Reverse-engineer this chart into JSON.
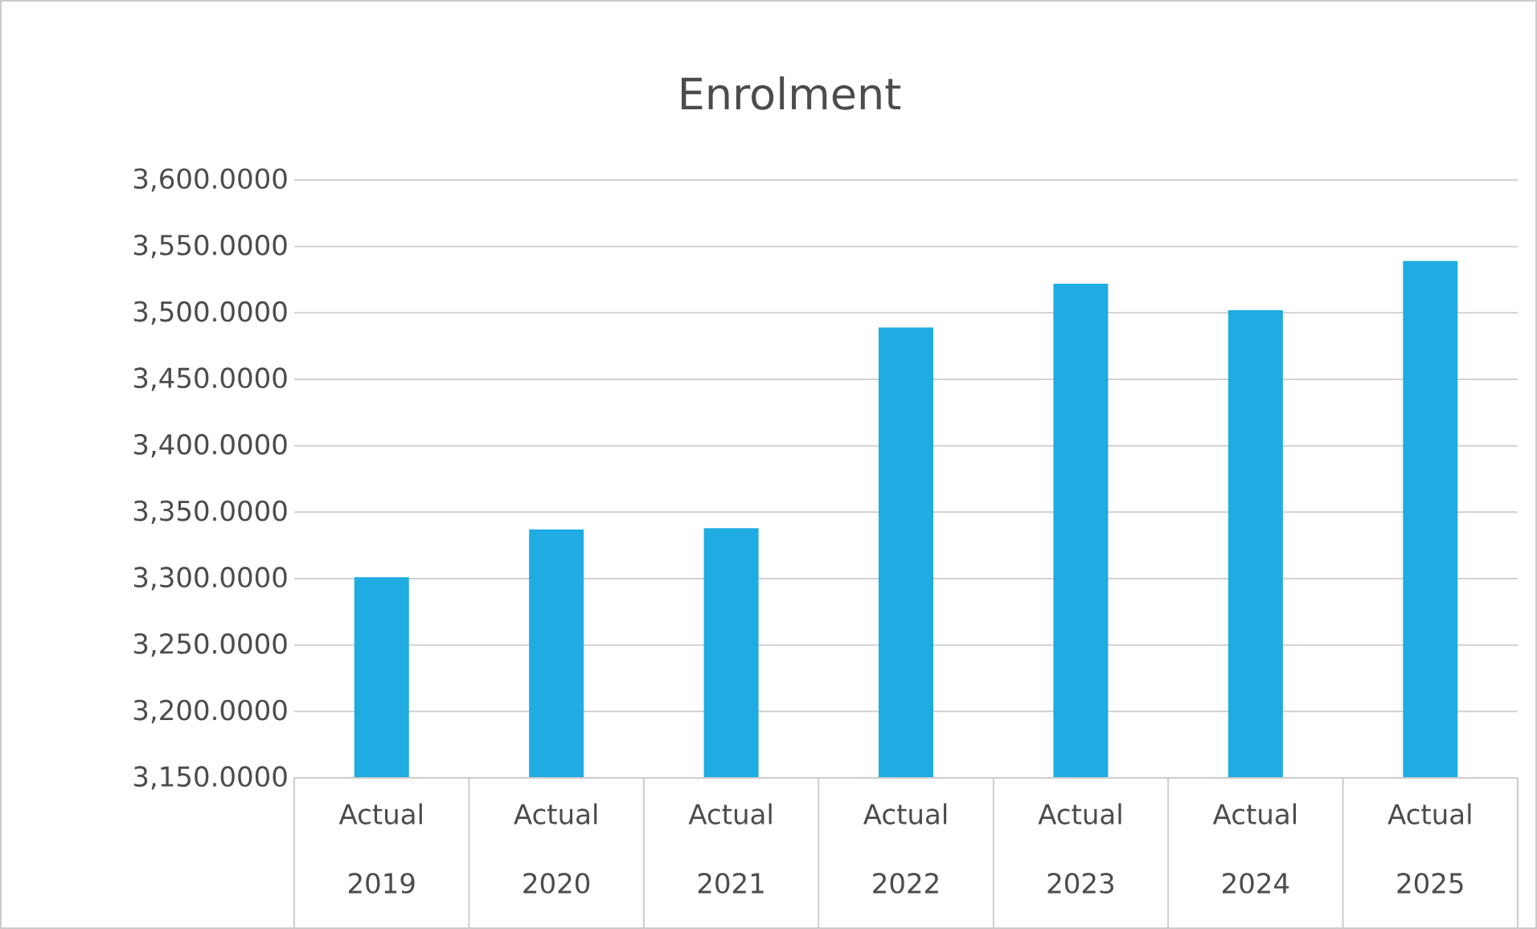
{
  "chart_data": {
    "type": "bar",
    "title": "Enrolment",
    "categories": [
      "Actual 2019",
      "Actual 2020",
      "Actual 2021",
      "Actual 2022",
      "Actual 2023",
      "Actual 2024",
      "Actual 2025"
    ],
    "values": [
      3301,
      3337,
      3338,
      3489,
      3522,
      3502,
      3539
    ],
    "color": "#1eace2",
    "ylim": [
      3150,
      3600
    ],
    "yticks": [
      {
        "value": 3150,
        "label": "3,150.0000"
      },
      {
        "value": 3200,
        "label": "3,200.0000"
      },
      {
        "value": 3250,
        "label": "3,250.0000"
      },
      {
        "value": 3300,
        "label": "3,300.0000"
      },
      {
        "value": 3350,
        "label": "3,350.0000"
      },
      {
        "value": 3400,
        "label": "3,400.0000"
      },
      {
        "value": 3450,
        "label": "3,450.0000"
      },
      {
        "value": 3500,
        "label": "3,500.0000"
      },
      {
        "value": 3550,
        "label": "3,550.0000"
      },
      {
        "value": 3600,
        "label": "3,600.0000"
      }
    ],
    "grid": "y"
  }
}
